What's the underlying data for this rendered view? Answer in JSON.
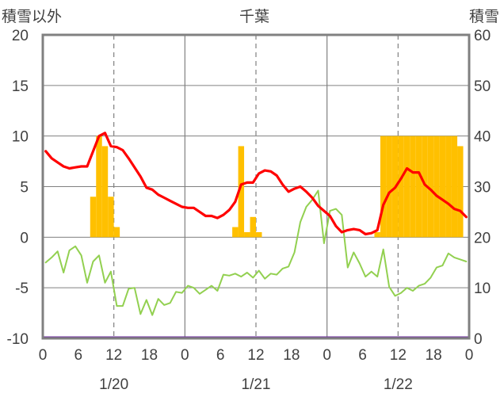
{
  "chart_data": {
    "type": "bar+line",
    "title": "千葉",
    "left_axis_label": "積雪以外",
    "right_axis_label": "積雪",
    "left_ylim": [
      -10,
      20
    ],
    "left_yticks": [
      -10,
      -5,
      0,
      5,
      10,
      15,
      20
    ],
    "right_ylim": [
      0,
      60
    ],
    "right_yticks": [
      0,
      10,
      20,
      30,
      40,
      50,
      60
    ],
    "x_tick_labels": [
      "0",
      "6",
      "12",
      "18",
      "0",
      "6",
      "12",
      "18",
      "0",
      "6",
      "12",
      "18",
      "0"
    ],
    "date_labels": [
      "1/20",
      "1/21",
      "1/22"
    ],
    "grid": "dashed vertical at 12:00, solid vertical at day boundaries",
    "colors": {
      "frame": "#808080",
      "snow_bars": "#ffc000",
      "red_series": "#ff0000",
      "green_series": "#92d050",
      "purple_series": "#7030a0"
    },
    "bar_series": {
      "axis": "right",
      "hours": [
        8,
        9,
        10,
        11,
        12,
        32,
        33,
        34,
        35,
        36,
        56,
        57,
        58,
        59,
        60,
        61,
        62,
        63,
        64,
        65,
        66,
        67,
        68,
        69,
        70
      ],
      "values": [
        28,
        40,
        38,
        28,
        22,
        22,
        38,
        21,
        24,
        21,
        21,
        40,
        40,
        40,
        40,
        40,
        40,
        40,
        40,
        40,
        40,
        40,
        40,
        40,
        38
      ]
    },
    "red_series": {
      "axis": "left",
      "hours": [
        0,
        1,
        2,
        3,
        4,
        5,
        6,
        7,
        8,
        9,
        10,
        11,
        12,
        13,
        14,
        15,
        16,
        17,
        18,
        19,
        20,
        21,
        22,
        23,
        24,
        25,
        26,
        27,
        28,
        29,
        30,
        31,
        32,
        33,
        34,
        35,
        36,
        37,
        38,
        39,
        40,
        41,
        42,
        43,
        44,
        45,
        46,
        47,
        48,
        49,
        50,
        51,
        52,
        53,
        54,
        55,
        56,
        57,
        58,
        59,
        60,
        61,
        62,
        63,
        64,
        65,
        66,
        67,
        68,
        69,
        70,
        71
      ],
      "values": [
        8.5,
        7.8,
        7.4,
        7.0,
        6.8,
        6.9,
        7.0,
        7.0,
        8.5,
        10.0,
        10.3,
        9.0,
        8.9,
        8.6,
        7.8,
        6.9,
        6.0,
        4.9,
        4.7,
        4.2,
        3.9,
        3.6,
        3.3,
        3.0,
        2.9,
        2.9,
        2.5,
        2.1,
        2.1,
        1.9,
        2.2,
        2.7,
        3.5,
        5.2,
        5.4,
        5.4,
        6.3,
        6.6,
        6.5,
        6.1,
        5.2,
        4.5,
        4.8,
        5.0,
        4.5,
        3.9,
        3.1,
        2.6,
        2.1,
        1.1,
        0.5,
        0.7,
        0.8,
        0.7,
        0.3,
        0.4,
        0.7,
        3.2,
        4.4,
        4.9,
        5.8,
        6.8,
        6.4,
        6.4,
        5.2,
        4.7,
        4.1,
        3.7,
        3.3,
        2.8,
        2.6,
        2.0
      ]
    },
    "green_series": {
      "axis": "left",
      "hours": [
        0,
        1,
        2,
        3,
        4,
        5,
        6,
        7,
        8,
        9,
        10,
        11,
        12,
        13,
        14,
        15,
        16,
        17,
        18,
        19,
        20,
        21,
        22,
        23,
        24,
        25,
        26,
        27,
        28,
        29,
        30,
        31,
        32,
        33,
        34,
        35,
        36,
        37,
        38,
        39,
        40,
        41,
        42,
        43,
        44,
        45,
        46,
        47,
        48,
        49,
        50,
        51,
        52,
        53,
        54,
        55,
        56,
        57,
        58,
        59,
        60,
        61,
        62,
        63,
        64,
        65,
        66,
        67,
        68,
        69,
        70,
        71
      ],
      "values": [
        -2.5,
        -2.0,
        -1.4,
        -3.5,
        -1.3,
        -0.9,
        -1.8,
        -4.5,
        -2.4,
        -1.8,
        -4.5,
        -3.4,
        -6.8,
        -6.8,
        -5.1,
        -5.0,
        -7.6,
        -6.2,
        -7.7,
        -6.1,
        -6.7,
        -6.5,
        -5.4,
        -5.5,
        -4.8,
        -5.0,
        -5.6,
        -5.2,
        -4.8,
        -5.3,
        -3.7,
        -3.8,
        -3.6,
        -3.9,
        -3.5,
        -4.0,
        -3.3,
        -4.1,
        -3.6,
        -3.7,
        -3.1,
        -2.9,
        -1.5,
        1.5,
        3.0,
        3.7,
        4.6,
        -0.6,
        2.6,
        2.8,
        2.2,
        -3.0,
        -1.5,
        -2.6,
        -3.9,
        -3.4,
        -3.9,
        -1.2,
        -4.9,
        -5.8,
        -5.5,
        -5.0,
        -5.3,
        -4.8,
        -4.6,
        -4.0,
        -3.0,
        -2.8,
        -1.6,
        -2.0,
        -2.2,
        -2.4
      ]
    },
    "purple_series": {
      "axis": "left",
      "hours": [
        0,
        71
      ],
      "values": [
        -10,
        -10
      ]
    }
  }
}
